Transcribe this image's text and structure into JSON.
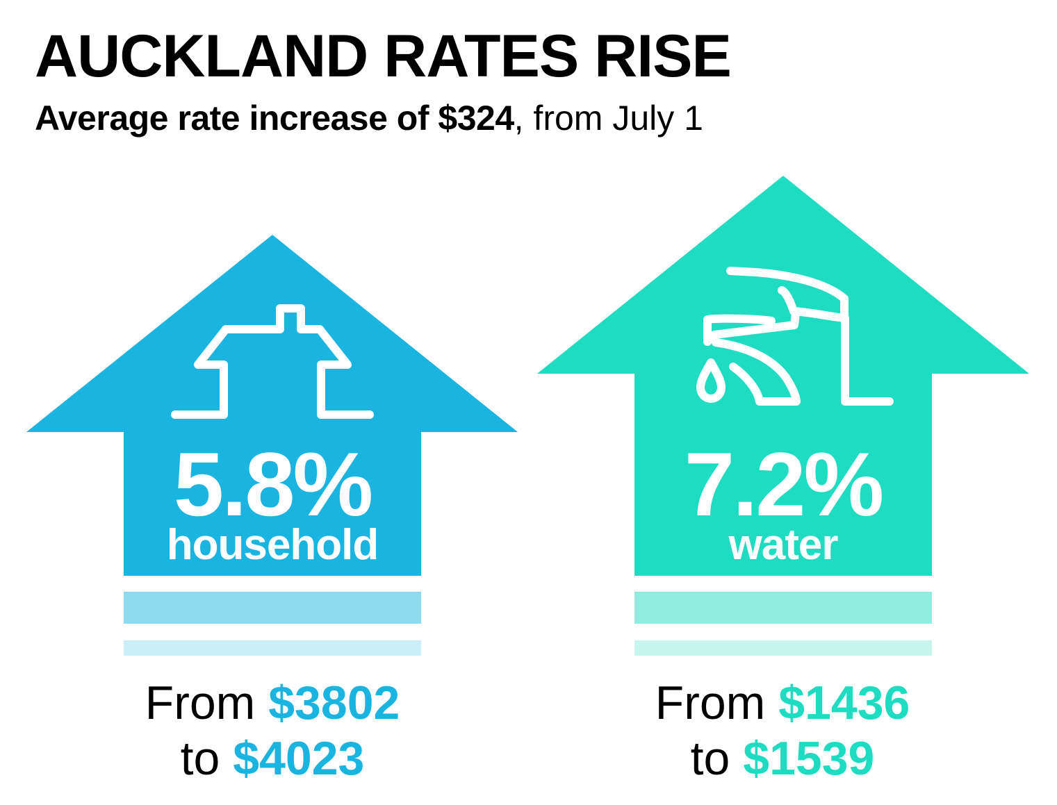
{
  "title": "AUCKLAND RATES RISE",
  "subtitle": {
    "bold": "Average rate increase of $324",
    "normal": ", from July 1"
  },
  "colors": {
    "household": "#1ab4e0",
    "household_band1": "#8edbf0",
    "household_band2": "#c9eef8",
    "water": "#1ddcc2",
    "water_band1": "#8fede0",
    "water_band2": "#c6f6ee"
  },
  "household": {
    "icon": "house-icon",
    "percent": "5.8%",
    "label": "household",
    "range": {
      "from_word": "From",
      "from_amount": "$3802",
      "to_word": "to",
      "to_amount": "$4023"
    }
  },
  "water": {
    "icon": "tap-icon",
    "percent": "7.2%",
    "label": "water",
    "range": {
      "from_word": "From",
      "from_amount": "$1436",
      "to_word": "to",
      "to_amount": "$1539"
    }
  }
}
